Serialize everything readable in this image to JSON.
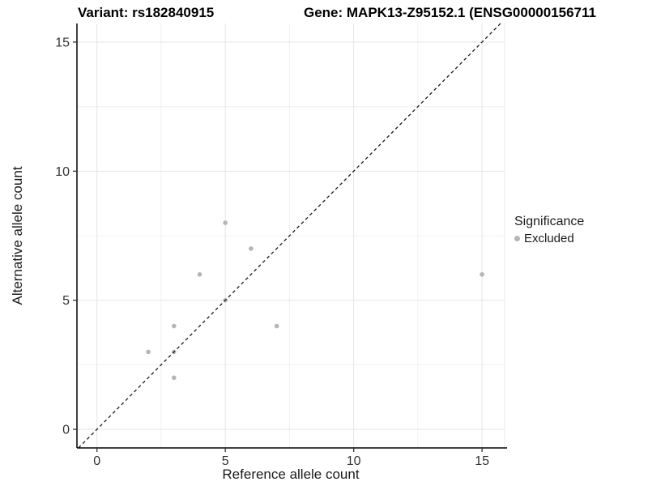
{
  "header": {
    "variant_title": "Variant: rs182840915",
    "gene_title": "Gene: MAPK13-Z95152.1 (ENSG00000156711"
  },
  "legend": {
    "title": "Significance",
    "items": [
      {
        "label": "Excluded",
        "color": "#b5b5b5"
      }
    ]
  },
  "chart_data": {
    "type": "scatter",
    "title": "Variant: rs182840915 — Gene: MAPK13-Z95152.1 (ENSG00000156711",
    "xlabel": "Reference allele count",
    "ylabel": "Alternative allele count",
    "xlim": [
      -0.78,
      15.88
    ],
    "ylim": [
      -0.72,
      15.72
    ],
    "x_ticks": [
      0,
      5,
      10,
      15
    ],
    "y_ticks": [
      0,
      5,
      10,
      15
    ],
    "x_minor_ticks": [
      2.5,
      7.5,
      12.5
    ],
    "y_minor_ticks": [
      2.5,
      7.5,
      12.5
    ],
    "grid": true,
    "legend_position": "right",
    "series": [
      {
        "name": "Excluded",
        "color": "#b5b5b5",
        "points": [
          [
            2,
            3
          ],
          [
            3,
            2
          ],
          [
            3,
            3
          ],
          [
            3,
            4
          ],
          [
            4,
            6
          ],
          [
            5,
            5
          ],
          [
            5,
            8
          ],
          [
            6,
            7
          ],
          [
            7,
            4
          ],
          [
            15,
            6
          ]
        ]
      }
    ],
    "reference_line": {
      "type": "identity",
      "style": "dashed",
      "color": "#1a1a1a"
    }
  },
  "colors": {
    "point_gray": "#b5b5b5",
    "axis_line": "#000000",
    "tick_text": "#333333",
    "grid_major": "#e4e4e4",
    "grid_minor": "#f0f0f0",
    "panel_border": "#ececec"
  }
}
